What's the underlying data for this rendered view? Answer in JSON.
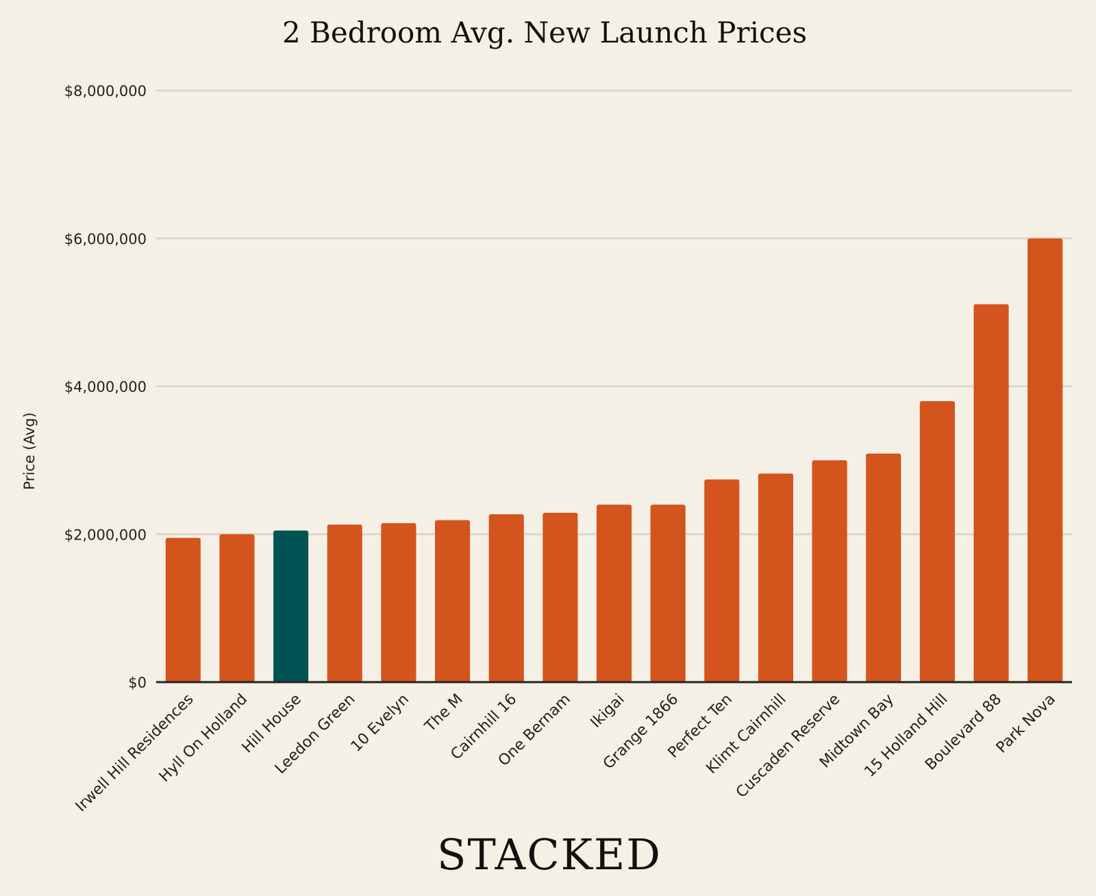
{
  "chart_data": {
    "type": "bar",
    "title": "2 Bedroom Avg. New Launch Prices",
    "xlabel": "",
    "ylabel": "Price (Avg)",
    "ylim": [
      0,
      8000000
    ],
    "yticks": [
      {
        "value": 0,
        "label": "$0"
      },
      {
        "value": 2000000,
        "label": "$2,000,000"
      },
      {
        "value": 4000000,
        "label": "$4,000,000"
      },
      {
        "value": 6000000,
        "label": "$6,000,000"
      },
      {
        "value": 8000000,
        "label": "$8,000,000"
      }
    ],
    "grid": true,
    "legend": "none",
    "bar_color": "#d4541d",
    "highlight_color": "#005353",
    "highlight_category": "Hill House",
    "categories": [
      "Irwell Hill Residences",
      "Hyll On Holland",
      "Hill House",
      "Leedon Green",
      "10 Evelyn",
      "The M",
      "Cairnhill 16",
      "One Bernam",
      "Ikigai",
      "Grange 1866",
      "Perfect Ten",
      "Klimt Cairnhill",
      "Cuscaden Reserve",
      "Midtown Bay",
      "15 Holland Hill",
      "Boulevard 88",
      "Park Nova"
    ],
    "values": [
      1950000,
      2000000,
      2050000,
      2130000,
      2150000,
      2190000,
      2270000,
      2290000,
      2400000,
      2400000,
      2740000,
      2820000,
      3000000,
      3090000,
      3800000,
      5110000,
      6000000
    ]
  },
  "branding": {
    "logo_text": "STACKED"
  },
  "colors": {
    "background": "#f5f0e5",
    "gridline": "#dcd6cb",
    "axis": "#222222"
  }
}
